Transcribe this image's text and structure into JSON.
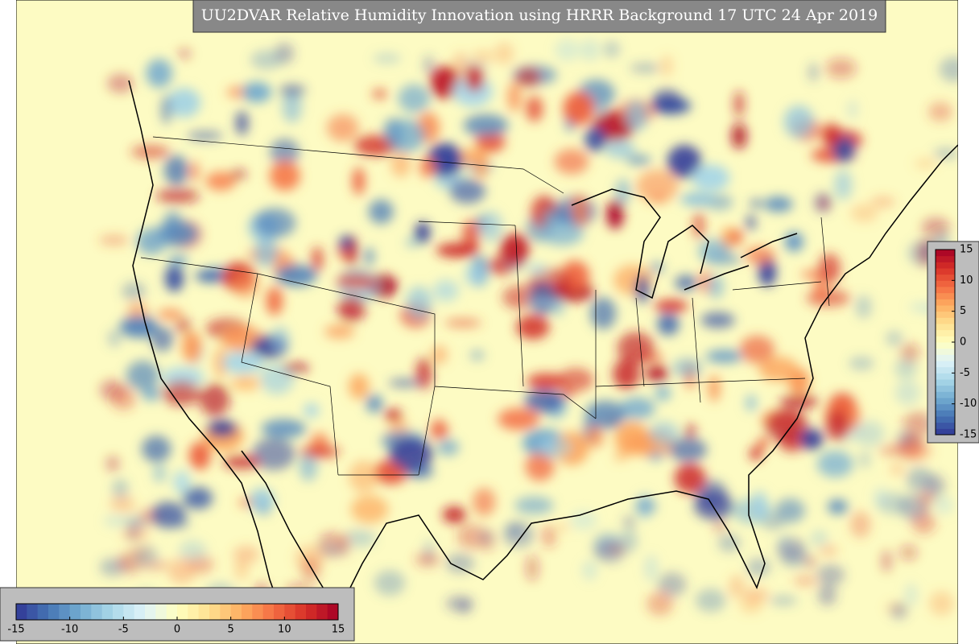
{
  "title": "UU2DVAR Relative Humidity Innovation using HRRR Background 17 UTC 24 Apr 2019",
  "colorbar": {
    "range": [
      -15,
      15
    ],
    "ticks": [
      -15,
      -10,
      -5,
      0,
      5,
      10,
      15
    ],
    "levels": 30,
    "color_stops": [
      "#313695",
      "#4575b4",
      "#74add1",
      "#abd9e9",
      "#e0f3f8",
      "#ffffbf",
      "#fee090",
      "#fdae61",
      "#f46d43",
      "#d73027",
      "#a50026"
    ]
  }
}
